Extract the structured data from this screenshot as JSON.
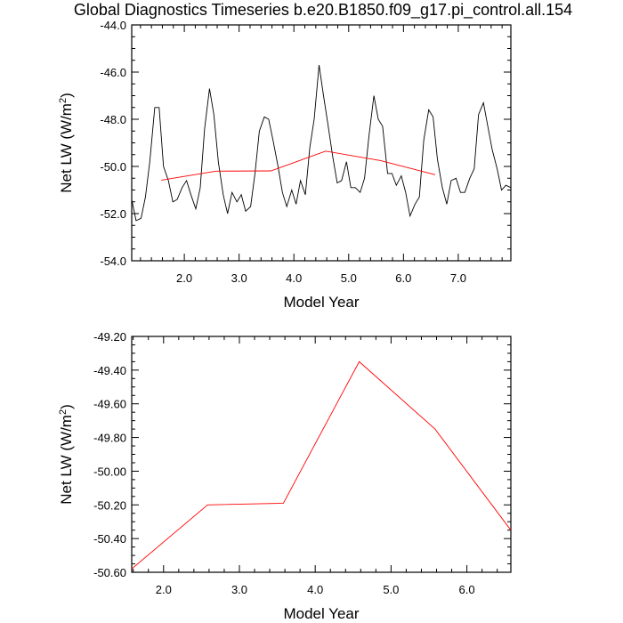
{
  "title": "Global Diagnostics Timeseries b.e20.B1850.f09_g17.pi_control.all.154",
  "chart_data": [
    {
      "type": "line",
      "xlabel": "Model Year",
      "ylabel": "Net LW (W/m",
      "ylabel_sup": "2",
      "ylabel_end": ")",
      "xlim": [
        1.04,
        7.96
      ],
      "ylim": [
        -54.0,
        -44.0
      ],
      "xticks": [
        2.0,
        3.0,
        4.0,
        5.0,
        6.0,
        7.0
      ],
      "xtick_labels": [
        "2.0",
        "3.0",
        "4.0",
        "5.0",
        "6.0",
        "7.0"
      ],
      "yticks": [
        -54.0,
        -52.0,
        -50.0,
        -48.0,
        -46.0,
        -44.0
      ],
      "ytick_labels": [
        "-54.0",
        "-52.0",
        "-50.0",
        "-48.0",
        "-46.0",
        "-44.0"
      ],
      "series": [
        {
          "color": "#000000",
          "x": [
            1.04,
            1.12,
            1.21,
            1.29,
            1.37,
            1.46,
            1.54,
            1.62,
            1.71,
            1.79,
            1.87,
            1.96,
            2.04,
            2.12,
            2.21,
            2.29,
            2.37,
            2.46,
            2.54,
            2.62,
            2.71,
            2.79,
            2.87,
            2.96,
            3.04,
            3.12,
            3.21,
            3.29,
            3.37,
            3.46,
            3.54,
            3.62,
            3.71,
            3.79,
            3.87,
            3.96,
            4.04,
            4.12,
            4.21,
            4.29,
            4.37,
            4.46,
            4.54,
            4.62,
            4.71,
            4.79,
            4.87,
            4.96,
            5.04,
            5.12,
            5.21,
            5.29,
            5.37,
            5.46,
            5.54,
            5.62,
            5.71,
            5.79,
            5.87,
            5.96,
            6.04,
            6.12,
            6.21,
            6.29,
            6.37,
            6.46,
            6.54,
            6.62,
            6.71,
            6.79,
            6.87,
            6.96,
            7.04,
            7.12,
            7.21,
            7.29,
            7.37,
            7.46,
            7.54,
            7.62,
            7.71,
            7.79,
            7.87,
            7.96
          ],
          "y": [
            -51.4,
            -52.3,
            -52.2,
            -51.3,
            -49.8,
            -47.5,
            -47.5,
            -50.0,
            -50.6,
            -51.5,
            -51.4,
            -50.9,
            -50.6,
            -51.2,
            -51.8,
            -50.9,
            -48.4,
            -46.7,
            -47.8,
            -49.8,
            -51.2,
            -52.0,
            -51.1,
            -51.5,
            -51.2,
            -51.9,
            -51.7,
            -50.3,
            -48.5,
            -47.9,
            -48.0,
            -48.9,
            -50.0,
            -51.1,
            -51.7,
            -51.0,
            -51.6,
            -50.6,
            -51.2,
            -49.2,
            -48.0,
            -45.7,
            -47.0,
            -48.2,
            -49.6,
            -50.7,
            -50.6,
            -49.8,
            -50.9,
            -50.9,
            -51.1,
            -50.5,
            -48.7,
            -47.0,
            -48.0,
            -48.3,
            -50.3,
            -50.3,
            -50.8,
            -50.4,
            -51.1,
            -52.1,
            -51.6,
            -51.3,
            -48.9,
            -47.6,
            -47.9,
            -49.7,
            -50.9,
            -51.6,
            -50.6,
            -50.5,
            -51.1,
            -51.1,
            -50.5,
            -50.1,
            -47.8,
            -47.3,
            -48.3,
            -49.3,
            -50.1,
            -51.0,
            -50.8,
            -50.9
          ]
        },
        {
          "color": "#ff0000",
          "x": [
            1.58,
            2.58,
            3.58,
            4.58,
            5.58,
            6.58
          ],
          "y": [
            -50.58,
            -50.2,
            -50.19,
            -49.35,
            -49.75,
            -50.35
          ]
        }
      ]
    },
    {
      "type": "line",
      "xlabel": "Model Year",
      "ylabel": "Net LW (W/m",
      "ylabel_sup": "2",
      "ylabel_end": ")",
      "xlim": [
        1.58,
        6.58
      ],
      "ylim": [
        -50.6,
        -49.2
      ],
      "xticks": [
        2.0,
        3.0,
        4.0,
        5.0,
        6.0
      ],
      "xtick_labels": [
        "2.0",
        "3.0",
        "4.0",
        "5.0",
        "6.0"
      ],
      "yticks": [
        -50.6,
        -50.4,
        -50.2,
        -50.0,
        -49.8,
        -49.6,
        -49.4,
        -49.2
      ],
      "ytick_labels": [
        "-50.60",
        "-50.40",
        "-50.20",
        "-50.00",
        "-49.80",
        "-49.60",
        "-49.40",
        "-49.20"
      ],
      "series": [
        {
          "color": "#ff0000",
          "x": [
            1.58,
            2.58,
            3.58,
            4.58,
            5.58,
            6.58
          ],
          "y": [
            -50.58,
            -50.2,
            -50.19,
            -49.35,
            -49.75,
            -50.35
          ]
        }
      ]
    }
  ]
}
